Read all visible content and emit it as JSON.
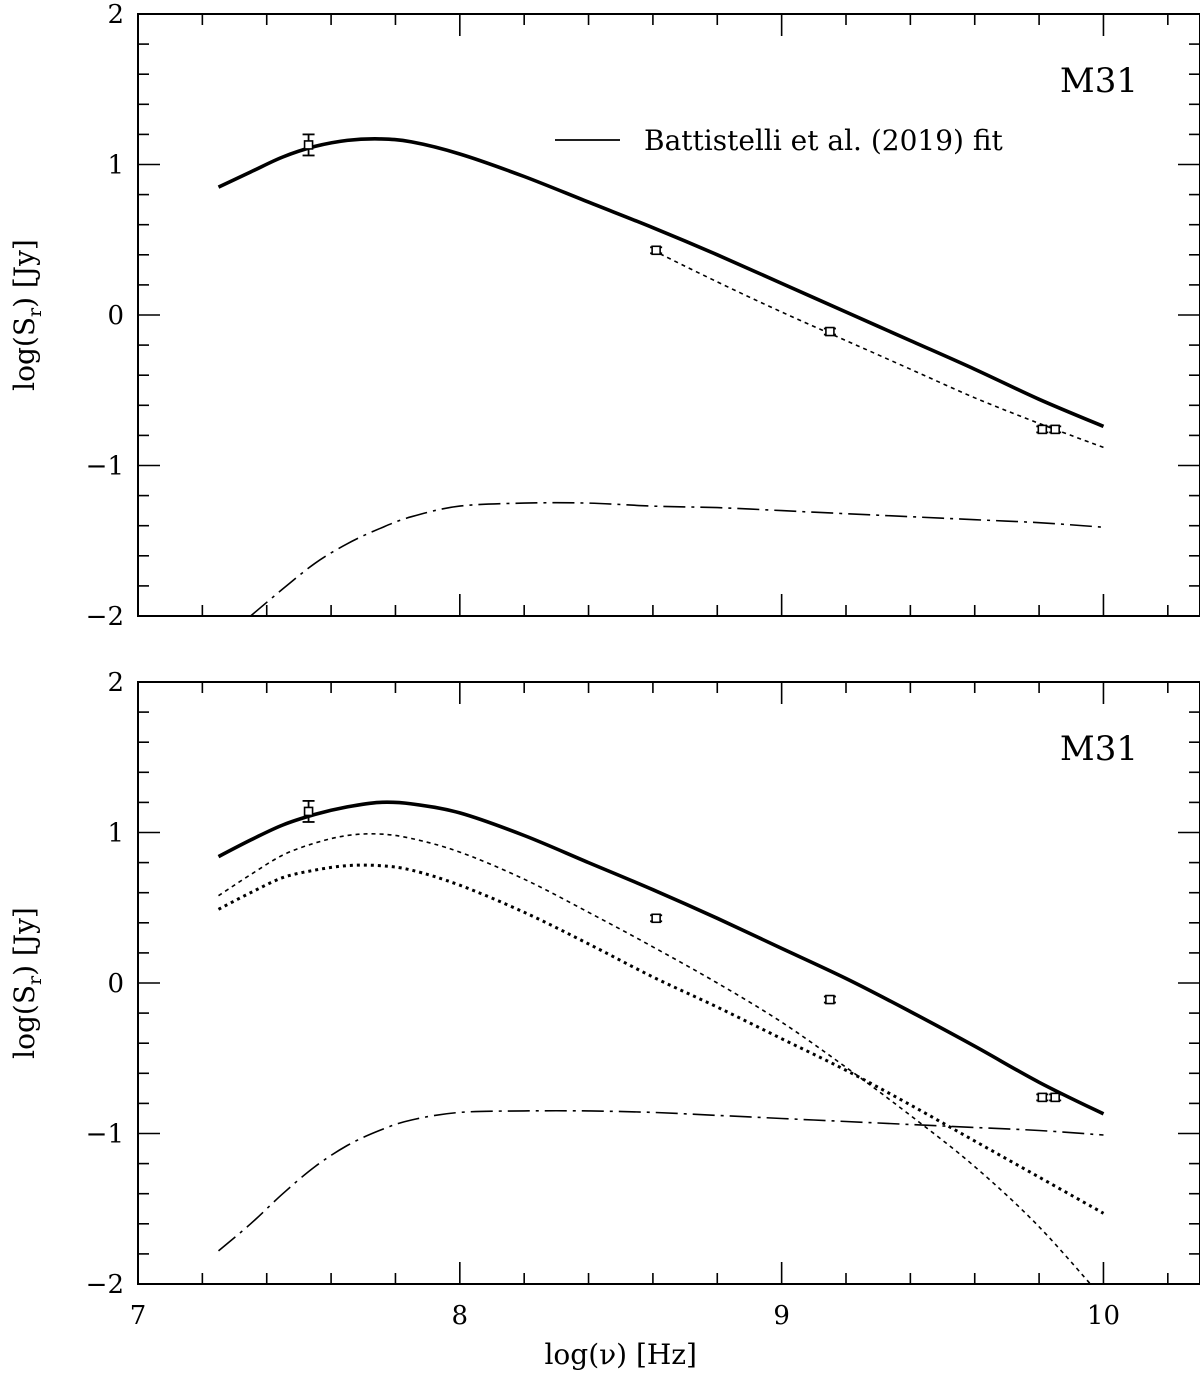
{
  "chart_data": [
    {
      "type": "line",
      "panel_label": "M31",
      "xlabel": "log(ν) [Hz]",
      "ylabel_main": "log(S",
      "ylabel_sub": "r",
      "ylabel_tail": ") [Jy]",
      "xlim": [
        7.0,
        10.3
      ],
      "ylim": [
        -2,
        2
      ],
      "x_ticks": [
        7,
        8,
        9,
        10
      ],
      "y_ticks": [
        -2,
        -1,
        0,
        1,
        2
      ],
      "show_x_tick_labels": false,
      "legend": {
        "position": "top-right",
        "entries": [
          {
            "label": "Battistelli et al. (2019) fit",
            "series": "total"
          }
        ]
      },
      "series": [
        {
          "id": "total",
          "style": "solid-thick",
          "x": [
            7.25,
            7.35,
            7.45,
            7.55,
            7.65,
            7.75,
            7.85,
            8.0,
            8.2,
            8.4,
            8.6,
            8.8,
            9.0,
            9.2,
            9.4,
            9.6,
            9.8,
            10.0
          ],
          "y": [
            0.85,
            0.95,
            1.05,
            1.12,
            1.16,
            1.17,
            1.15,
            1.07,
            0.92,
            0.75,
            0.58,
            0.4,
            0.21,
            0.02,
            -0.17,
            -0.36,
            -0.56,
            -0.74
          ]
        },
        {
          "id": "synchrotron",
          "style": "dotted",
          "x": [
            8.6,
            8.8,
            9.0,
            9.2,
            9.4,
            9.6,
            9.8,
            10.0
          ],
          "y": [
            0.43,
            0.22,
            0.02,
            -0.17,
            -0.36,
            -0.55,
            -0.72,
            -0.88
          ]
        },
        {
          "id": "thermal",
          "style": "dash-dot",
          "x": [
            7.35,
            7.45,
            7.55,
            7.65,
            7.75,
            7.85,
            8.0,
            8.2,
            8.4,
            8.6,
            8.8,
            9.0,
            9.2,
            9.4,
            9.6,
            9.8,
            10.0
          ],
          "y": [
            -2.0,
            -1.82,
            -1.65,
            -1.52,
            -1.42,
            -1.34,
            -1.27,
            -1.25,
            -1.25,
            -1.27,
            -1.28,
            -1.3,
            -1.32,
            -1.34,
            -1.36,
            -1.38,
            -1.41
          ]
        }
      ],
      "data_points": {
        "x": [
          7.53,
          8.61,
          9.15,
          9.81,
          9.85
        ],
        "y": [
          1.13,
          0.43,
          -0.11,
          -0.76,
          -0.76
        ],
        "err": [
          0.07,
          0.02,
          0.02,
          0.02,
          0.02
        ]
      }
    },
    {
      "type": "line",
      "panel_label": "M31",
      "xlabel": "log(ν) [Hz]",
      "ylabel_main": "log(S",
      "ylabel_sub": "r",
      "ylabel_tail": ") [Jy]",
      "xlim": [
        7.0,
        10.3
      ],
      "ylim": [
        -2,
        2
      ],
      "x_ticks": [
        7,
        8,
        9,
        10
      ],
      "y_ticks": [
        -2,
        -1,
        0,
        1,
        2
      ],
      "show_x_tick_labels": true,
      "series": [
        {
          "id": "total",
          "style": "solid-thick",
          "x": [
            7.25,
            7.35,
            7.45,
            7.55,
            7.65,
            7.75,
            7.85,
            8.0,
            8.2,
            8.4,
            8.6,
            8.8,
            9.0,
            9.2,
            9.4,
            9.6,
            9.8,
            10.0
          ],
          "y": [
            0.84,
            0.95,
            1.05,
            1.12,
            1.17,
            1.2,
            1.19,
            1.13,
            0.98,
            0.8,
            0.62,
            0.43,
            0.23,
            0.03,
            -0.19,
            -0.42,
            -0.66,
            -0.87
          ]
        },
        {
          "id": "component-fine-dotted",
          "style": "dotted",
          "x": [
            7.25,
            7.35,
            7.45,
            7.55,
            7.65,
            7.75,
            7.85,
            8.0,
            8.2,
            8.4,
            8.6,
            8.8,
            9.0,
            9.2,
            9.4,
            9.6,
            9.8,
            10.0
          ],
          "y": [
            0.58,
            0.72,
            0.85,
            0.93,
            0.98,
            0.99,
            0.96,
            0.87,
            0.69,
            0.47,
            0.24,
            0.0,
            -0.26,
            -0.56,
            -0.88,
            -1.22,
            -1.62,
            -2.1
          ]
        },
        {
          "id": "component-heavy-dotted",
          "style": "dotted-heavy",
          "x": [
            7.25,
            7.35,
            7.45,
            7.55,
            7.65,
            7.75,
            7.85,
            8.0,
            8.2,
            8.4,
            8.6,
            8.8,
            9.0,
            9.2,
            9.4,
            9.6,
            9.8,
            10.0
          ],
          "y": [
            0.49,
            0.6,
            0.7,
            0.75,
            0.78,
            0.78,
            0.75,
            0.65,
            0.47,
            0.26,
            0.04,
            -0.16,
            -0.37,
            -0.58,
            -0.81,
            -1.05,
            -1.29,
            -1.53
          ]
        },
        {
          "id": "thermal",
          "style": "dash-dot",
          "x": [
            7.25,
            7.35,
            7.45,
            7.55,
            7.65,
            7.75,
            7.85,
            8.0,
            8.2,
            8.4,
            8.6,
            8.8,
            9.0,
            9.2,
            9.4,
            9.6,
            9.8,
            10.0
          ],
          "y": [
            -1.78,
            -1.6,
            -1.4,
            -1.22,
            -1.08,
            -0.98,
            -0.91,
            -0.86,
            -0.85,
            -0.85,
            -0.86,
            -0.88,
            -0.9,
            -0.92,
            -0.94,
            -0.96,
            -0.98,
            -1.01
          ]
        }
      ],
      "data_points": {
        "x": [
          7.53,
          8.61,
          9.15,
          9.81,
          9.85
        ],
        "y": [
          1.14,
          0.43,
          -0.11,
          -0.76,
          -0.76
        ],
        "err": [
          0.07,
          0.02,
          0.02,
          0.02,
          0.02
        ]
      }
    }
  ]
}
